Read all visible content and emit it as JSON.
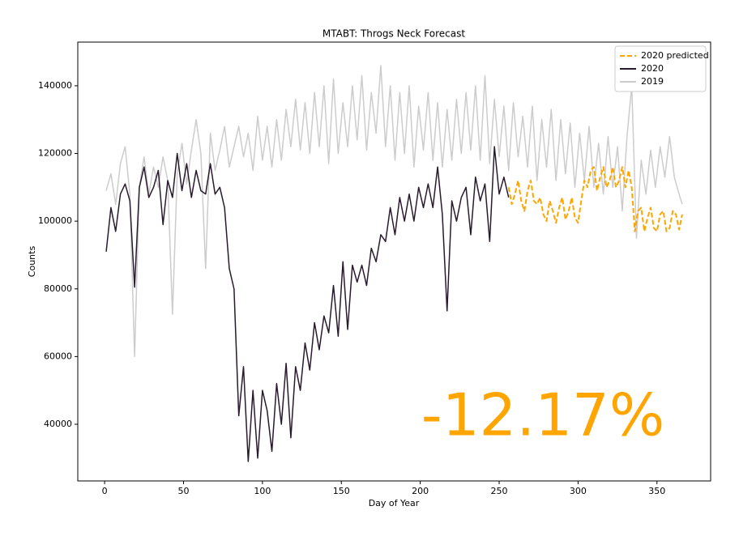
{
  "chart_data": {
    "type": "line",
    "title": "MTABT: Throgs Neck Forecast",
    "xlabel": "Day of Year",
    "ylabel": "Counts",
    "xlim": [
      -17,
      384
    ],
    "ylim": [
      23250,
      152900
    ],
    "xticks": [
      0,
      50,
      100,
      150,
      200,
      250,
      300,
      350
    ],
    "yticks": [
      40000,
      60000,
      80000,
      100000,
      120000,
      140000
    ],
    "legend": "upper right",
    "annotation": "-12.17%",
    "annotation_color": "#ffa500",
    "series": [
      {
        "name": "2020 predicted",
        "color": "#ffa500",
        "linestyle": "dashed",
        "x": [
          256,
          258,
          260,
          262,
          264,
          266,
          268,
          270,
          272,
          274,
          276,
          278,
          280,
          282,
          284,
          286,
          288,
          290,
          292,
          294,
          296,
          298,
          300,
          302,
          304,
          306,
          308,
          310,
          312,
          314,
          316,
          318,
          320,
          322,
          324,
          326,
          328,
          330,
          332,
          334,
          336,
          338,
          340,
          342,
          344,
          346,
          348,
          350,
          352,
          354,
          356,
          358,
          360,
          362,
          364,
          366
        ],
        "values": [
          110000,
          105000,
          108000,
          112000,
          106000,
          103000,
          109000,
          112000,
          106000,
          105000,
          107000,
          102000,
          100000,
          106000,
          103000,
          99500,
          104000,
          107000,
          100500,
          103000,
          107000,
          101000,
          99500,
          106000,
          112000,
          110000,
          115000,
          116000,
          109000,
          113000,
          116000,
          110000,
          112000,
          116000,
          110000,
          112000,
          116000,
          110000,
          115000,
          110000,
          97000,
          103000,
          104000,
          97000,
          101000,
          104000,
          98000,
          97000,
          102000,
          103000,
          97000,
          98000,
          103000,
          102000,
          97500,
          102000
        ]
      },
      {
        "name": "2020",
        "color": "#2a1a2e",
        "linestyle": "solid",
        "x": [
          1,
          4,
          7,
          10,
          13,
          16,
          19,
          22,
          25,
          28,
          31,
          34,
          37,
          40,
          43,
          46,
          49,
          52,
          55,
          58,
          61,
          64,
          67,
          70,
          73,
          76,
          79,
          82,
          85,
          88,
          91,
          94,
          97,
          100,
          103,
          106,
          109,
          112,
          115,
          118,
          121,
          124,
          127,
          130,
          133,
          136,
          139,
          142,
          145,
          148,
          151,
          154,
          157,
          160,
          163,
          166,
          169,
          172,
          175,
          178,
          181,
          184,
          187,
          190,
          193,
          196,
          199,
          202,
          205,
          208,
          211,
          214,
          217,
          220,
          223,
          226,
          229,
          232,
          235,
          238,
          241,
          244,
          247,
          250,
          253,
          256
        ],
        "values": [
          91000,
          104000,
          97000,
          108000,
          111000,
          106000,
          80500,
          110000,
          116000,
          107000,
          110000,
          115000,
          99000,
          112000,
          107000,
          120000,
          109000,
          117000,
          107000,
          115000,
          109000,
          108000,
          117000,
          108000,
          110000,
          104000,
          86000,
          80000,
          42500,
          57000,
          29000,
          50000,
          30000,
          50000,
          44000,
          32000,
          52000,
          40000,
          58000,
          36000,
          57000,
          50000,
          64000,
          56000,
          70000,
          62000,
          72000,
          67000,
          81000,
          66000,
          88000,
          68000,
          87000,
          82000,
          87000,
          81000,
          92000,
          88000,
          96000,
          94000,
          104000,
          96000,
          107000,
          100000,
          108000,
          100000,
          110000,
          104000,
          111000,
          104000,
          116000,
          102000,
          73500,
          106000,
          100000,
          107000,
          110000,
          96000,
          113000,
          106000,
          111000,
          94000,
          122000,
          108000,
          113000,
          107000
        ]
      },
      {
        "name": "2019",
        "color": "#cccccc",
        "linestyle": "solid",
        "x": [
          1,
          4,
          7,
          10,
          13,
          16,
          19,
          22,
          25,
          28,
          31,
          34,
          37,
          40,
          43,
          46,
          49,
          52,
          55,
          58,
          61,
          64,
          67,
          70,
          73,
          76,
          79,
          82,
          85,
          88,
          91,
          94,
          97,
          100,
          103,
          106,
          109,
          112,
          115,
          118,
          121,
          124,
          127,
          130,
          133,
          136,
          139,
          142,
          145,
          148,
          151,
          154,
          157,
          160,
          163,
          166,
          169,
          172,
          175,
          178,
          181,
          184,
          187,
          190,
          193,
          196,
          199,
          202,
          205,
          208,
          211,
          214,
          217,
          220,
          223,
          226,
          229,
          232,
          235,
          238,
          241,
          244,
          247,
          250,
          253,
          256,
          259,
          262,
          265,
          268,
          271,
          274,
          277,
          280,
          283,
          286,
          289,
          292,
          295,
          298,
          301,
          304,
          307,
          310,
          313,
          316,
          319,
          322,
          325,
          328,
          331,
          334,
          337,
          340,
          343,
          346,
          349,
          352,
          355,
          358,
          361,
          364,
          366
        ],
        "values": [
          109000,
          114000,
          105000,
          117000,
          122000,
          108000,
          60000,
          110000,
          119000,
          108000,
          116000,
          110000,
          119000,
          112000,
          72500,
          114000,
          123000,
          111000,
          121000,
          130000,
          120000,
          86000,
          126000,
          115000,
          121000,
          128000,
          116000,
          122000,
          128000,
          119000,
          126000,
          115000,
          131000,
          118000,
          128000,
          116000,
          130000,
          118000,
          133000,
          122000,
          136000,
          121000,
          135000,
          120000,
          138000,
          122000,
          140000,
          117000,
          142000,
          120000,
          135000,
          122000,
          140000,
          124000,
          143000,
          121000,
          138000,
          126000,
          146000,
          122000,
          140000,
          118000,
          138000,
          120000,
          140000,
          116000,
          134000,
          121000,
          138000,
          118000,
          135000,
          116000,
          133000,
          118000,
          136000,
          120000,
          138000,
          121000,
          140000,
          118000,
          143000,
          117000,
          136000,
          119000,
          134000,
          115000,
          135000,
          119000,
          131000,
          116000,
          134000,
          112000,
          130000,
          116000,
          133000,
          112000,
          130000,
          114000,
          129000,
          110000,
          126000,
          112000,
          128000,
          110000,
          123000,
          108000,
          125000,
          110000,
          122000,
          103000,
          125000,
          140000,
          95000,
          118000,
          108000,
          121000,
          110000,
          122000,
          113000,
          125000,
          113000,
          108000,
          105000
        ]
      }
    ]
  }
}
